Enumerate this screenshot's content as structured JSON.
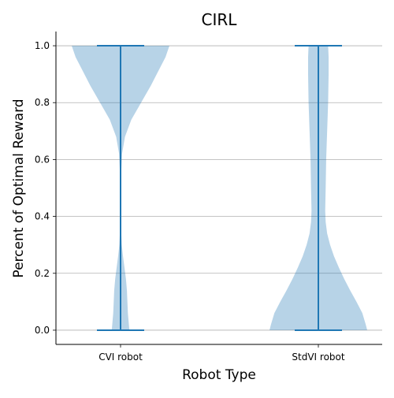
{
  "chart_data": {
    "type": "violin",
    "title": "CIRL",
    "xlabel": "Robot Type",
    "ylabel": "Percent of Optimal Reward",
    "categories": [
      "CVI robot",
      "StdVI robot"
    ],
    "ylim": [
      -0.05,
      1.05
    ],
    "yticks": [
      0.0,
      0.2,
      0.4,
      0.6,
      0.8,
      1.0
    ],
    "ytick_labels": [
      "0.0",
      "0.2",
      "0.4",
      "0.6",
      "0.8",
      "1.0"
    ],
    "grid": "horizontal",
    "colors": {
      "violin_fill": "#1f77b4",
      "violin_fill_opacity": 0.32,
      "line": "#1f77b4",
      "grid": "#b0b0b0",
      "spine": "#000000"
    },
    "series": [
      {
        "category": "CVI robot",
        "min": 0.0,
        "max": 1.0,
        "density_profile": [
          [
            0.0,
            0.18
          ],
          [
            0.02,
            0.17
          ],
          [
            0.06,
            0.15
          ],
          [
            0.1,
            0.14
          ],
          [
            0.14,
            0.13
          ],
          [
            0.18,
            0.11
          ],
          [
            0.22,
            0.08
          ],
          [
            0.26,
            0.05
          ],
          [
            0.3,
            0.025
          ],
          [
            0.35,
            0.012
          ],
          [
            0.45,
            0.01
          ],
          [
            0.55,
            0.012
          ],
          [
            0.62,
            0.03
          ],
          [
            0.68,
            0.09
          ],
          [
            0.74,
            0.22
          ],
          [
            0.8,
            0.42
          ],
          [
            0.86,
            0.62
          ],
          [
            0.92,
            0.8
          ],
          [
            0.96,
            0.92
          ],
          [
            1.0,
            1.0
          ]
        ]
      },
      {
        "category": "StdVI robot",
        "min": 0.0,
        "max": 1.0,
        "density_profile": [
          [
            0.0,
            1.0
          ],
          [
            0.02,
            0.97
          ],
          [
            0.06,
            0.9
          ],
          [
            0.1,
            0.78
          ],
          [
            0.14,
            0.65
          ],
          [
            0.18,
            0.53
          ],
          [
            0.22,
            0.42
          ],
          [
            0.26,
            0.32
          ],
          [
            0.3,
            0.24
          ],
          [
            0.34,
            0.18
          ],
          [
            0.38,
            0.15
          ],
          [
            0.42,
            0.14
          ],
          [
            0.46,
            0.145
          ],
          [
            0.5,
            0.15
          ],
          [
            0.6,
            0.16
          ],
          [
            0.7,
            0.18
          ],
          [
            0.8,
            0.2
          ],
          [
            0.9,
            0.21
          ],
          [
            0.96,
            0.21
          ],
          [
            1.0,
            0.2
          ]
        ]
      }
    ]
  }
}
